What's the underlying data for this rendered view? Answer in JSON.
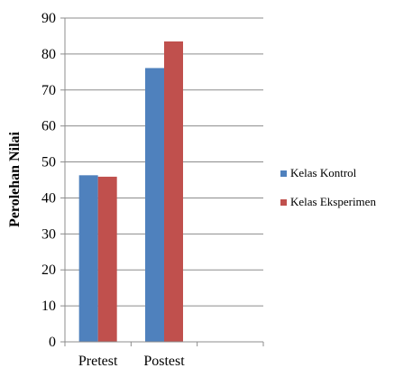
{
  "chart_data": {
    "type": "bar",
    "title": "",
    "xlabel": "",
    "ylabel": "Perolehan Nilai",
    "categories": [
      "Pretest",
      "Postest"
    ],
    "series": [
      {
        "name": "Kelas Kontrol",
        "values": [
          46.3,
          76.1
        ],
        "color": "#4f81bd"
      },
      {
        "name": "Kelas Eksperimen",
        "values": [
          45.9,
          83.5
        ],
        "color": "#c0504d"
      }
    ],
    "ylim": [
      0,
      90
    ],
    "yticks": [
      0,
      10,
      20,
      30,
      40,
      50,
      60,
      70,
      80,
      90
    ],
    "grid": true,
    "legend_position": "right"
  }
}
